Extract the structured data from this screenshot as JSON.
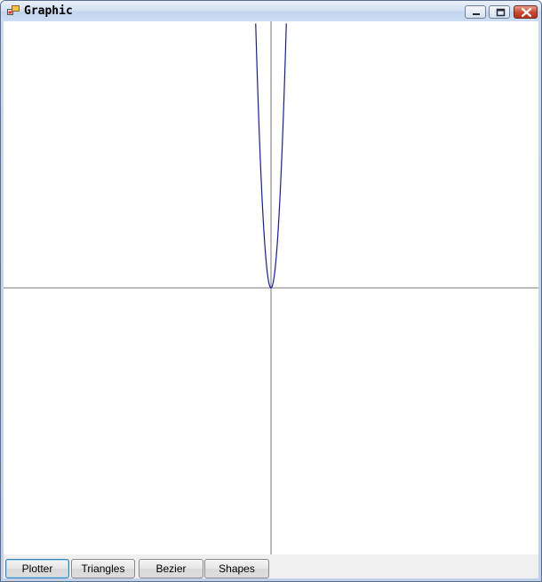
{
  "window": {
    "title": "Graphic",
    "icon": "app-window-icon",
    "controls": [
      "minimize-icon",
      "maximize-icon",
      "close-icon"
    ]
  },
  "canvas": {
    "background": "#ffffff",
    "axis_color": "#7a7a7a",
    "curve_color": "#1a1aa0"
  },
  "buttons": [
    {
      "label": "Plotter",
      "active": true
    },
    {
      "label": "Triangles",
      "active": false
    },
    {
      "label": "Bezier",
      "active": false
    },
    {
      "label": "Shapes",
      "active": false
    }
  ]
}
